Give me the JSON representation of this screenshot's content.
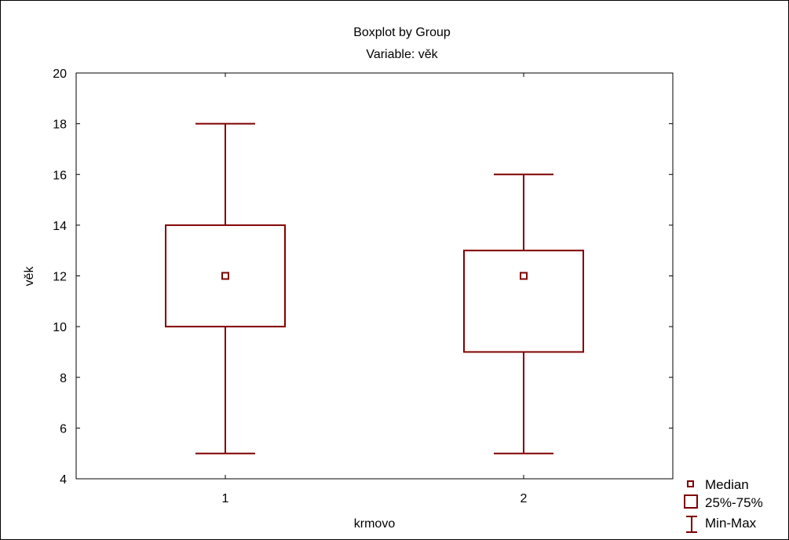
{
  "chart_data": {
    "type": "boxplot",
    "title": "Boxplot by Group",
    "subtitle": "Variable: věk",
    "xlabel": "krmovo",
    "ylabel": "věk",
    "ylim": [
      4,
      20
    ],
    "yticks": [
      4,
      6,
      8,
      10,
      12,
      14,
      16,
      18,
      20
    ],
    "categories": [
      "1",
      "2"
    ],
    "groups": [
      {
        "category": "1",
        "min": 5,
        "q1": 10,
        "median": 12,
        "q3": 14,
        "max": 18
      },
      {
        "category": "2",
        "min": 5,
        "q1": 9,
        "median": 12,
        "q3": 13,
        "max": 16
      }
    ],
    "legend": {
      "placement": "bottom-right",
      "entries": [
        "Median",
        "25%-75%",
        "Min-Max"
      ]
    },
    "grid": false,
    "colors": {
      "series": "#800000",
      "axis": "#000000"
    }
  }
}
